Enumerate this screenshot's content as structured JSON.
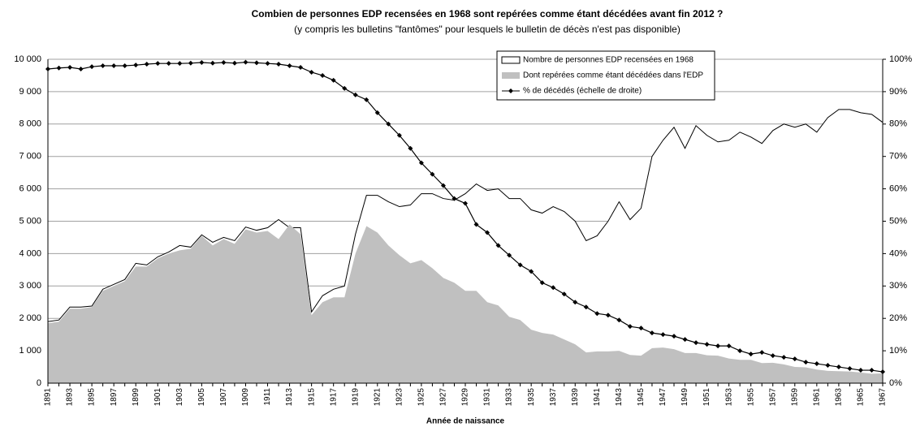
{
  "chart_data": {
    "type": "area-line",
    "title": "Combien  de personnes EDP recensées en 1968  sont repérées comme étant décédées avant fin 2012 ?",
    "subtitle": "(y compris les bulletins \"fantômes\" pour lesquels le bulletin de décès n'est pas disponible)",
    "x_label": "Année de naissance",
    "categories": [
      "1891",
      null,
      "1893",
      null,
      "1895",
      null,
      "1897",
      null,
      "1899",
      null,
      "1901",
      null,
      "1903",
      null,
      "1905",
      null,
      "1907",
      null,
      "1909",
      null,
      "1911",
      null,
      "1913",
      null,
      "1915",
      null,
      "1917",
      null,
      "1919",
      null,
      "1921",
      null,
      "1923",
      null,
      "1925",
      null,
      "1927",
      null,
      "1929",
      null,
      "1931",
      null,
      "1933",
      null,
      "1935",
      null,
      "1937",
      null,
      "1939",
      null,
      "1941",
      null,
      "1943",
      null,
      "1945",
      null,
      "1947",
      null,
      "1949",
      null,
      "1951",
      null,
      "1953",
      null,
      "1955",
      null,
      "1957",
      null,
      "1959",
      null,
      "1961",
      null,
      "1963",
      null,
      "1965",
      null,
      "1967"
    ],
    "series": [
      {
        "name": "Nombre de personnes EDP recensées en 1968",
        "color": "#ffffff",
        "values": [
          1900,
          1950,
          2350,
          2350,
          2380,
          2900,
          3050,
          3200,
          3700,
          3650,
          3900,
          4050,
          4250,
          4200,
          4580,
          4350,
          4500,
          4400,
          4820,
          4720,
          4800,
          5050,
          4800,
          4800,
          2200,
          2700,
          2900,
          3000,
          4600,
          5800,
          5800,
          5600,
          5450,
          5500,
          5850,
          5850,
          5700,
          5650,
          5850,
          6150,
          5950,
          6000,
          5700,
          5700,
          5350,
          5250,
          5450,
          5300,
          5000,
          4400,
          4550,
          5000,
          5600,
          5050,
          5400,
          7000,
          7500,
          7900,
          7250,
          7950,
          7650,
          7450,
          7500,
          7750,
          7600,
          7400,
          7800,
          8000,
          7900,
          8000,
          7750,
          8200,
          8450,
          8450,
          8350,
          8300,
          8050
        ]
      },
      {
        "name": "Dont repérées comme étant décédées dans l'EDP",
        "color": "#c0c0c0",
        "values": [
          1850,
          1900,
          2300,
          2300,
          2350,
          2850,
          3000,
          3150,
          3600,
          3600,
          3850,
          4000,
          4100,
          4150,
          4550,
          4250,
          4450,
          4300,
          4750,
          4650,
          4700,
          4450,
          4900,
          4600,
          2100,
          2500,
          2650,
          2650,
          4000,
          4850,
          4650,
          4250,
          3950,
          3700,
          3800,
          3550,
          3250,
          3100,
          2850,
          2850,
          2500,
          2400,
          2050,
          1950,
          1650,
          1550,
          1500,
          1350,
          1200,
          950,
          980,
          980,
          1000,
          870,
          850,
          1080,
          1100,
          1050,
          930,
          930,
          860,
          850,
          760,
          720,
          720,
          620,
          630,
          580,
          500,
          490,
          420,
          380,
          370,
          360,
          330,
          290,
          300
        ]
      },
      {
        "name": "% de décédés (échelle de droite)",
        "color": "#000000",
        "axis": "y2",
        "values": [
          97,
          97.3,
          97.5,
          97,
          97.7,
          98,
          98,
          98,
          98.2,
          98.5,
          98.7,
          98.7,
          98.7,
          98.8,
          99,
          98.8,
          99,
          98.8,
          99.1,
          98.9,
          98.7,
          98.5,
          98,
          97.5,
          96,
          95,
          93.5,
          91,
          89,
          87.5,
          83.5,
          80,
          76.5,
          72.5,
          68,
          64.5,
          61,
          57,
          55.5,
          49,
          46.5,
          42.5,
          39.5,
          36.5,
          34.5,
          31,
          29.5,
          27.5,
          25,
          23.5,
          21.5,
          21,
          19.5,
          17.5,
          17,
          15.5,
          15,
          14.5,
          13.5,
          12.5,
          12,
          11.5,
          11.5,
          10,
          9,
          9.5,
          8.5,
          8,
          7.5,
          6.5,
          6,
          5.5,
          5,
          4.5,
          4,
          4,
          3.5
        ]
      }
    ],
    "ylim": [
      0,
      10000
    ],
    "yticks": [
      0,
      {
        "value": 1000,
        "label": "1 000"
      },
      {
        "value": 2000,
        "label": "2 000"
      },
      {
        "value": 3000,
        "label": "3 000"
      },
      {
        "value": 4000,
        "label": "4 000"
      },
      {
        "value": 5000,
        "label": "5 000"
      },
      {
        "value": 6000,
        "label": "6 000"
      },
      {
        "value": 7000,
        "label": "7 000"
      },
      {
        "value": 8000,
        "label": "8 000"
      },
      {
        "value": 9000,
        "label": "9 000"
      },
      {
        "value": 10000,
        "label": "10 000"
      }
    ],
    "y2lim": [
      0,
      100
    ],
    "y2ticks": [
      {
        "value": 0,
        "label": "0%"
      },
      {
        "value": 10,
        "label": "10%"
      },
      {
        "value": 20,
        "label": "20%"
      },
      {
        "value": 30,
        "label": "30%"
      },
      {
        "value": 40,
        "label": "40%"
      },
      {
        "value": 50,
        "label": "50%"
      },
      {
        "value": 60,
        "label": "60%"
      },
      {
        "value": 70,
        "label": "70%"
      },
      {
        "value": 80,
        "label": "80%"
      },
      {
        "value": 90,
        "label": "90%"
      },
      {
        "value": 100,
        "label": "100%"
      }
    ],
    "grid": true,
    "legend": "top-right"
  }
}
